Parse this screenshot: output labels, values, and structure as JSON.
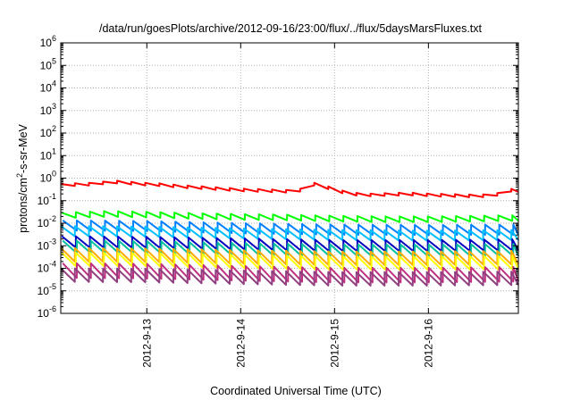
{
  "chart_data": {
    "type": "line",
    "title": "/data/run/goesPlots/archive/2012-09-16/23:00/flux/../flux/5daysMarsFluxes.txt",
    "xlabel": "Coordinated Universal Time (UTC)",
    "ylabel": {
      "pre": "protons/cm",
      "sup": "2",
      "post": "-s-sr-MeV"
    },
    "y_scale": "log",
    "ylim": [
      1e-06,
      1000000.0
    ],
    "y_ticks": [
      {
        "exp": "-6",
        "value": 1e-06
      },
      {
        "exp": "-5",
        "value": 1e-05
      },
      {
        "exp": "-4",
        "value": 0.0001
      },
      {
        "exp": "-3",
        "value": 0.001
      },
      {
        "exp": "-2",
        "value": 0.01
      },
      {
        "exp": "-1",
        "value": 0.1
      },
      {
        "exp": "0",
        "value": 1
      },
      {
        "exp": "1",
        "value": 10
      },
      {
        "exp": "2",
        "value": 100
      },
      {
        "exp": "3",
        "value": 1000
      },
      {
        "exp": "4",
        "value": 10000
      },
      {
        "exp": "5",
        "value": 100000
      },
      {
        "exp": "6",
        "value": 1000000
      }
    ],
    "xlim": [
      "2012-09-12T02:00",
      "2012-09-16T23:00"
    ],
    "x_ticks": [
      {
        "label": "2012-9-13",
        "date": "2012-09-13T00:00"
      },
      {
        "label": "2012-9-14",
        "date": "2012-09-14T00:00"
      },
      {
        "label": "2012-9-15",
        "date": "2012-09-15T00:00"
      },
      {
        "label": "2012-9-16",
        "date": "2012-09-16T00:00"
      }
    ],
    "grid": true,
    "series": [
      {
        "color": "#ff0000",
        "x": [
          "2012-09-12T02:00",
          "2012-09-12T05:00",
          "2012-09-12T08:00",
          "2012-09-12T11:00",
          "2012-09-12T14:00",
          "2012-09-12T17:00",
          "2012-09-12T20:00",
          "2012-09-12T23:00",
          "2012-09-13T04:00",
          "2012-09-13T09:00",
          "2012-09-13T14:00",
          "2012-09-13T19:00",
          "2012-09-14T00:00",
          "2012-09-14T06:00",
          "2012-09-14T12:00",
          "2012-09-14T16:00",
          "2012-09-14T18:00",
          "2012-09-14T21:00",
          "2012-09-15T00:00",
          "2012-09-15T04:00",
          "2012-09-15T09:00",
          "2012-09-15T14:00",
          "2012-09-15T19:00",
          "2012-09-16T00:00",
          "2012-09-16T06:00",
          "2012-09-16T12:00",
          "2012-09-16T17:00",
          "2012-09-16T20:00",
          "2012-09-16T23:00"
        ],
        "values": [
          0.48,
          0.52,
          0.5,
          0.6,
          0.62,
          0.68,
          0.6,
          0.55,
          0.5,
          0.42,
          0.38,
          0.33,
          0.3,
          0.28,
          0.26,
          0.3,
          0.58,
          0.45,
          0.3,
          0.2,
          0.18,
          0.19,
          0.2,
          0.18,
          0.17,
          0.16,
          0.17,
          0.3,
          0.28
        ],
        "amp_dex": 0.12
      },
      {
        "color": "#00ff00",
        "x": [
          "2012-09-12T02:00",
          "2012-09-12T14:00",
          "2012-09-13T00:00",
          "2012-09-13T12:00",
          "2012-09-14T00:00",
          "2012-09-14T12:00",
          "2012-09-15T00:00",
          "2012-09-15T12:00",
          "2012-09-16T00:00",
          "2012-09-16T12:00",
          "2012-09-16T23:00"
        ],
        "values": [
          0.022,
          0.026,
          0.024,
          0.021,
          0.019,
          0.018,
          0.016,
          0.015,
          0.015,
          0.016,
          0.017
        ],
        "amp_dex": 0.25
      },
      {
        "color": "#0080ff",
        "x": [
          "2012-09-12T02:00",
          "2012-09-13T00:00",
          "2012-09-14T00:00",
          "2012-09-15T00:00",
          "2012-09-16T00:00",
          "2012-09-16T23:00"
        ],
        "values": [
          0.008,
          0.0075,
          0.006,
          0.0052,
          0.005,
          0.0052
        ],
        "amp_dex": 0.45
      },
      {
        "color": "#00c0ff",
        "x": [
          "2012-09-12T02:00",
          "2012-09-13T00:00",
          "2012-09-14T00:00",
          "2012-09-15T00:00",
          "2012-09-16T00:00",
          "2012-09-16T23:00"
        ],
        "values": [
          0.0045,
          0.0042,
          0.0035,
          0.003,
          0.0028,
          0.003
        ],
        "amp_dex": 0.45
      },
      {
        "color": "#0000c0",
        "x": [
          "2012-09-12T02:00",
          "2012-09-13T00:00",
          "2012-09-14T00:00",
          "2012-09-15T00:00",
          "2012-09-16T00:00",
          "2012-09-16T23:00"
        ],
        "values": [
          0.0015,
          0.0014,
          0.0012,
          0.001,
          0.001,
          0.0011
        ],
        "amp_dex": 0.5
      },
      {
        "color": "#00c0a0",
        "x": [
          "2012-09-12T02:00",
          "2012-09-13T00:00",
          "2012-09-14T00:00",
          "2012-09-15T00:00",
          "2012-09-16T00:00",
          "2012-09-16T23:00"
        ],
        "values": [
          0.0009,
          0.00085,
          0.0007,
          0.0006,
          0.0006,
          0.00065
        ],
        "amp_dex": 0.55
      },
      {
        "color": "#ffaa00",
        "x": [
          "2012-09-12T02:00",
          "2012-09-13T00:00",
          "2012-09-14T00:00",
          "2012-09-15T00:00",
          "2012-09-16T00:00",
          "2012-09-16T23:00"
        ],
        "values": [
          0.0004,
          0.00038,
          0.00032,
          0.00028,
          0.00028,
          0.0003
        ],
        "amp_dex": 0.6
      },
      {
        "color": "#ffff00",
        "x": [
          "2012-09-12T02:00",
          "2012-09-13T00:00",
          "2012-09-14T00:00",
          "2012-09-15T00:00",
          "2012-09-16T00:00",
          "2012-09-16T23:00"
        ],
        "values": [
          0.00025,
          0.00024,
          0.0002,
          0.00017,
          0.00017,
          0.00018
        ],
        "amp_dex": 0.6
      },
      {
        "color": "#c03080",
        "x": [
          "2012-09-12T02:00",
          "2012-09-13T00:00",
          "2012-09-14T00:00",
          "2012-09-15T00:00",
          "2012-09-16T00:00",
          "2012-09-16T23:00"
        ],
        "values": [
          8e-05,
          7.5e-05,
          6e-05,
          5e-05,
          5e-05,
          5.5e-05
        ],
        "amp_dex": 0.65
      },
      {
        "color": "#904080",
        "x": [
          "2012-09-12T02:00",
          "2012-09-13T00:00",
          "2012-09-14T00:00",
          "2012-09-15T00:00",
          "2012-09-16T00:00",
          "2012-09-16T23:00"
        ],
        "values": [
          5e-05,
          4.8e-05,
          4e-05,
          3.4e-05,
          3.4e-05,
          3.6e-05
        ],
        "amp_dex": 0.6
      }
    ],
    "sawtooth_period_hours": 3.6
  }
}
